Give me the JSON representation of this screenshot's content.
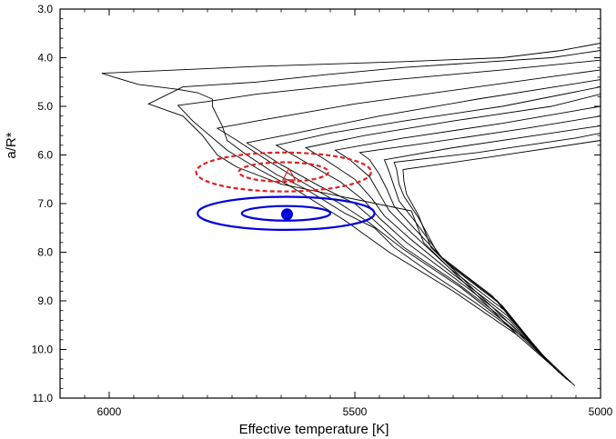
{
  "chart_data": {
    "type": "line",
    "title": "",
    "xlabel": "Effective temperature [K]",
    "ylabel": "a/R*",
    "xlim": [
      6100,
      5000
    ],
    "ylim": [
      3.0,
      11.0
    ],
    "x_ticks": [
      6000,
      5500,
      5000
    ],
    "x_tick_labels": [
      "6000",
      "5500",
      "5000"
    ],
    "y_ticks": [
      3.0,
      4.0,
      5.0,
      6.0,
      7.0,
      8.0,
      9.0,
      10.0,
      11.0
    ],
    "y_tick_labels": [
      "3.0",
      "4.0",
      "5.0",
      "6.0",
      "7.0",
      "8.0",
      "9.0",
      "10.0",
      "11.0"
    ],
    "colors": {
      "red": "#dd2222",
      "blue": "#0000dd",
      "black": "#000000"
    },
    "isochrones": [
      [
        [
          5052,
          10.75
        ],
        [
          5150,
          9.8
        ],
        [
          5260,
          9.0
        ],
        [
          5350,
          8.4
        ],
        [
          5420,
          7.9
        ],
        [
          5460,
          7.5
        ],
        [
          5520,
          7.2
        ],
        [
          5600,
          6.7
        ],
        [
          5660,
          6.4
        ],
        [
          5720,
          6.0
        ],
        [
          5760,
          5.7
        ],
        [
          5770,
          5.4
        ],
        [
          5790,
          5.0
        ],
        [
          5790,
          4.85
        ],
        [
          5820,
          4.72
        ],
        [
          5860,
          4.65
        ],
        [
          5940,
          4.55
        ],
        [
          5990,
          4.4
        ],
        [
          6015,
          4.32
        ],
        [
          5700,
          4.18
        ],
        [
          5400,
          4.08
        ],
        [
          5200,
          4.0
        ],
        [
          5080,
          3.85
        ],
        [
          5000,
          3.7
        ]
      ],
      [
        [
          5060,
          10.68
        ],
        [
          5170,
          9.7
        ],
        [
          5300,
          8.8
        ],
        [
          5430,
          8.0
        ],
        [
          5520,
          7.35
        ],
        [
          5630,
          6.65
        ],
        [
          5695,
          6.3
        ],
        [
          5760,
          5.9
        ],
        [
          5830,
          5.3
        ],
        [
          5860,
          4.98
        ],
        [
          5800,
          4.9
        ],
        [
          5700,
          4.75
        ],
        [
          5450,
          4.48
        ],
        [
          5200,
          4.25
        ],
        [
          5000,
          4.05
        ]
      ],
      [
        [
          5068,
          10.62
        ],
        [
          5175,
          9.6
        ],
        [
          5285,
          8.72
        ],
        [
          5400,
          7.95
        ],
        [
          5470,
          7.4
        ],
        [
          5530,
          7.0
        ],
        [
          5600,
          6.6
        ],
        [
          5680,
          6.1
        ],
        [
          5740,
          5.7
        ],
        [
          5780,
          5.45
        ],
        [
          5700,
          5.3
        ],
        [
          5500,
          4.95
        ],
        [
          5250,
          4.6
        ],
        [
          5000,
          4.25
        ]
      ],
      [
        [
          5076,
          10.55
        ],
        [
          5180,
          9.5
        ],
        [
          5290,
          8.65
        ],
        [
          5400,
          7.9
        ],
        [
          5460,
          7.35
        ],
        [
          5500,
          7.0
        ],
        [
          5570,
          6.65
        ],
        [
          5650,
          6.2
        ],
        [
          5720,
          5.75
        ],
        [
          5620,
          5.55
        ],
        [
          5450,
          5.2
        ],
        [
          5250,
          4.85
        ],
        [
          5000,
          4.45
        ]
      ],
      [
        [
          5084,
          10.48
        ],
        [
          5185,
          9.4
        ],
        [
          5295,
          8.55
        ],
        [
          5395,
          7.8
        ],
        [
          5450,
          7.3
        ],
        [
          5480,
          6.95
        ],
        [
          5530,
          6.55
        ],
        [
          5600,
          6.15
        ],
        [
          5660,
          5.8
        ],
        [
          5550,
          5.55
        ],
        [
          5400,
          5.3
        ],
        [
          5200,
          5.0
        ],
        [
          5000,
          4.6
        ]
      ],
      [
        [
          5092,
          10.4
        ],
        [
          5190,
          9.3
        ],
        [
          5300,
          8.45
        ],
        [
          5390,
          7.7
        ],
        [
          5440,
          7.25
        ],
        [
          5465,
          6.9
        ],
        [
          5500,
          6.5
        ],
        [
          5560,
          6.1
        ],
        [
          5600,
          5.85
        ],
        [
          5480,
          5.6
        ],
        [
          5300,
          5.3
        ],
        [
          5100,
          5.0
        ],
        [
          5000,
          4.75
        ]
      ],
      [
        [
          5100,
          10.32
        ],
        [
          5195,
          9.2
        ],
        [
          5305,
          8.35
        ],
        [
          5385,
          7.6
        ],
        [
          5430,
          7.15
        ],
        [
          5450,
          6.8
        ],
        [
          5470,
          6.45
        ],
        [
          5510,
          6.1
        ],
        [
          5540,
          5.9
        ],
        [
          5400,
          5.65
        ],
        [
          5200,
          5.35
        ],
        [
          5000,
          5.0
        ]
      ],
      [
        [
          5108,
          10.25
        ],
        [
          5200,
          9.1
        ],
        [
          5310,
          8.25
        ],
        [
          5380,
          7.5
        ],
        [
          5420,
          7.05
        ],
        [
          5435,
          6.7
        ],
        [
          5450,
          6.4
        ],
        [
          5470,
          6.1
        ],
        [
          5490,
          5.95
        ],
        [
          5350,
          5.75
        ],
        [
          5150,
          5.45
        ],
        [
          5000,
          5.2
        ]
      ],
      [
        [
          5118,
          10.15
        ],
        [
          5210,
          9.0
        ],
        [
          5320,
          8.15
        ],
        [
          5375,
          7.4
        ],
        [
          5410,
          6.95
        ],
        [
          5420,
          6.65
        ],
        [
          5430,
          6.35
        ],
        [
          5440,
          6.1
        ],
        [
          5300,
          5.85
        ],
        [
          5100,
          5.55
        ],
        [
          5000,
          5.4
        ]
      ],
      [
        [
          5126,
          10.05
        ],
        [
          5220,
          8.9
        ],
        [
          5330,
          8.05
        ],
        [
          5370,
          7.3
        ],
        [
          5400,
          6.85
        ],
        [
          5410,
          6.6
        ],
        [
          5415,
          6.3
        ],
        [
          5420,
          6.15
        ],
        [
          5250,
          5.95
        ],
        [
          5050,
          5.65
        ],
        [
          5000,
          5.55
        ]
      ],
      [
        [
          5150,
          9.8
        ],
        [
          5260,
          8.75
        ],
        [
          5345,
          7.9
        ],
        [
          5370,
          7.25
        ],
        [
          5395,
          6.8
        ],
        [
          5400,
          6.55
        ],
        [
          5402,
          6.3
        ],
        [
          5230,
          6.05
        ],
        [
          5000,
          5.7
        ]
      ],
      [
        [
          5165,
          9.75
        ],
        [
          5275,
          8.65
        ],
        [
          5360,
          7.8
        ],
        [
          5385,
          7.15
        ],
        [
          5650,
          6.6
        ],
        [
          5740,
          6.25
        ],
        [
          5780,
          6.0
        ],
        [
          5810,
          5.6
        ],
        [
          5850,
          5.2
        ],
        [
          5920,
          4.95
        ],
        [
          5850,
          4.6
        ],
        [
          5700,
          4.5
        ],
        [
          5560,
          4.35
        ],
        [
          5400,
          4.2
        ],
        [
          5250,
          4.1
        ],
        [
          5100,
          4.0
        ],
        [
          5000,
          3.85
        ]
      ]
    ],
    "ellipses": [
      {
        "name": "red-outer-ellipse",
        "color": "#dd2222",
        "style": "dashed",
        "cx": 5645,
        "cy": 6.35,
        "rx": 178,
        "ry": 0.4
      },
      {
        "name": "red-inner-ellipse",
        "color": "#dd2222",
        "style": "dashed",
        "cx": 5645,
        "cy": 6.35,
        "rx": 91,
        "ry": 0.2
      },
      {
        "name": "blue-outer-ellipse",
        "color": "#0000dd",
        "style": "solid",
        "cx": 5640,
        "cy": 7.2,
        "rx": 180,
        "ry": 0.34
      },
      {
        "name": "blue-inner-ellipse",
        "color": "#0000dd",
        "style": "solid",
        "cx": 5640,
        "cy": 7.2,
        "rx": 90,
        "ry": 0.15
      }
    ],
    "points": [
      {
        "name": "red-triangle-point",
        "color": "#dd2222",
        "marker": "triangle-open",
        "x": 5634,
        "y": 6.43
      },
      {
        "name": "blue-dot-point",
        "color": "#0000dd",
        "marker": "circle-filled",
        "x": 5638,
        "y": 7.22
      }
    ]
  }
}
